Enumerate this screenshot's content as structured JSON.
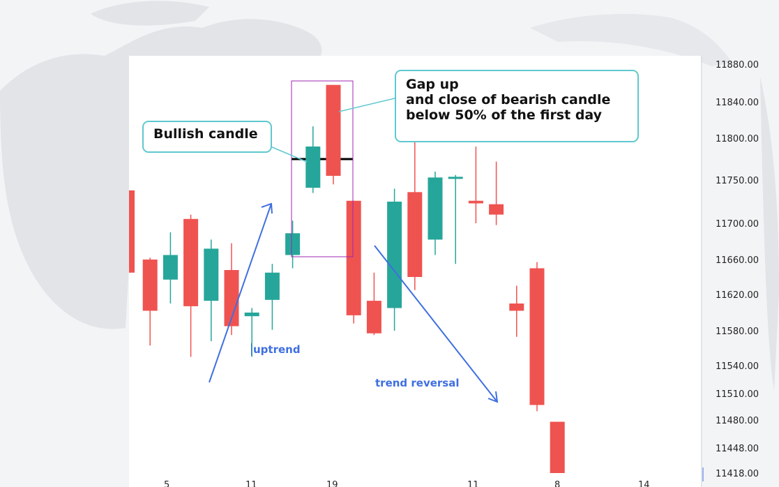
{
  "chart_data": {
    "type": "candlestick",
    "y_ticks": [
      "11880.00",
      "11840.00",
      "11800.00",
      "11750.00",
      "11700.00",
      "11660.00",
      "11620.00",
      "11580.00",
      "11540.00",
      "11510.00",
      "11480.00",
      "11448.00",
      "11418.00"
    ],
    "x_tick_labels": [
      "5",
      "11",
      "19",
      "11",
      "8",
      "14"
    ],
    "ylim": [
      11418,
      11880
    ],
    "colors": {
      "up": "#26a69a",
      "down": "#ef5350",
      "annotation": "#3f6fe0",
      "callout_border": "#5fc8cf",
      "highlight_box": "#9c27b0"
    },
    "candles": [
      {
        "o": 11738,
        "h": 11738,
        "l": 11645,
        "c": 11645
      },
      {
        "o": 11660,
        "h": 11662,
        "l": 11563,
        "c": 11602
      },
      {
        "o": 11637,
        "h": 11690,
        "l": 11610,
        "c": 11665
      },
      {
        "o": 11705,
        "h": 11710,
        "l": 11550,
        "c": 11607
      },
      {
        "o": 11613,
        "h": 11682,
        "l": 11568,
        "c": 11672
      },
      {
        "o": 11648,
        "h": 11678,
        "l": 11575,
        "c": 11585
      },
      {
        "o": 11596,
        "h": 11605,
        "l": 11550,
        "c": 11600
      },
      {
        "o": 11614,
        "h": 11655,
        "l": 11581,
        "c": 11645
      },
      {
        "o": 11665,
        "h": 11703,
        "l": 11650,
        "c": 11689
      },
      {
        "o": 11741,
        "h": 11813,
        "l": 11735,
        "c": 11790
      },
      {
        "o": 11858,
        "h": 11858,
        "l": 11745,
        "c": 11755
      },
      {
        "o": 11726,
        "h": 11726,
        "l": 11588,
        "c": 11597
      },
      {
        "o": 11613,
        "h": 11645,
        "l": 11575,
        "c": 11577
      },
      {
        "o": 11605,
        "h": 11740,
        "l": 11580,
        "c": 11725
      },
      {
        "o": 11736,
        "h": 11800,
        "l": 11625,
        "c": 11640
      },
      {
        "o": 11682,
        "h": 11760,
        "l": 11665,
        "c": 11753
      },
      {
        "o": 11753,
        "h": 11756,
        "l": 11655,
        "c": 11753
      },
      {
        "o": 11726,
        "h": 11790,
        "l": 11700,
        "c": 11723
      },
      {
        "o": 11722,
        "h": 11772,
        "l": 11698,
        "c": 11710
      },
      {
        "o": 11610,
        "h": 11630,
        "l": 11573,
        "c": 11602
      },
      {
        "o": 11650,
        "h": 11657,
        "l": 11490,
        "c": 11497
      },
      {
        "o": 11478,
        "h": 11478,
        "l": 11418,
        "c": 11418
      }
    ],
    "reference_line_value": 11775,
    "annotations": {
      "bullish_callout": "Bullish candle",
      "gap_callout": [
        "Gap up",
        "and close of bearish candle",
        "below 50% of the first day"
      ],
      "uptrend": "uptrend",
      "reversal": "trend reversal"
    }
  }
}
